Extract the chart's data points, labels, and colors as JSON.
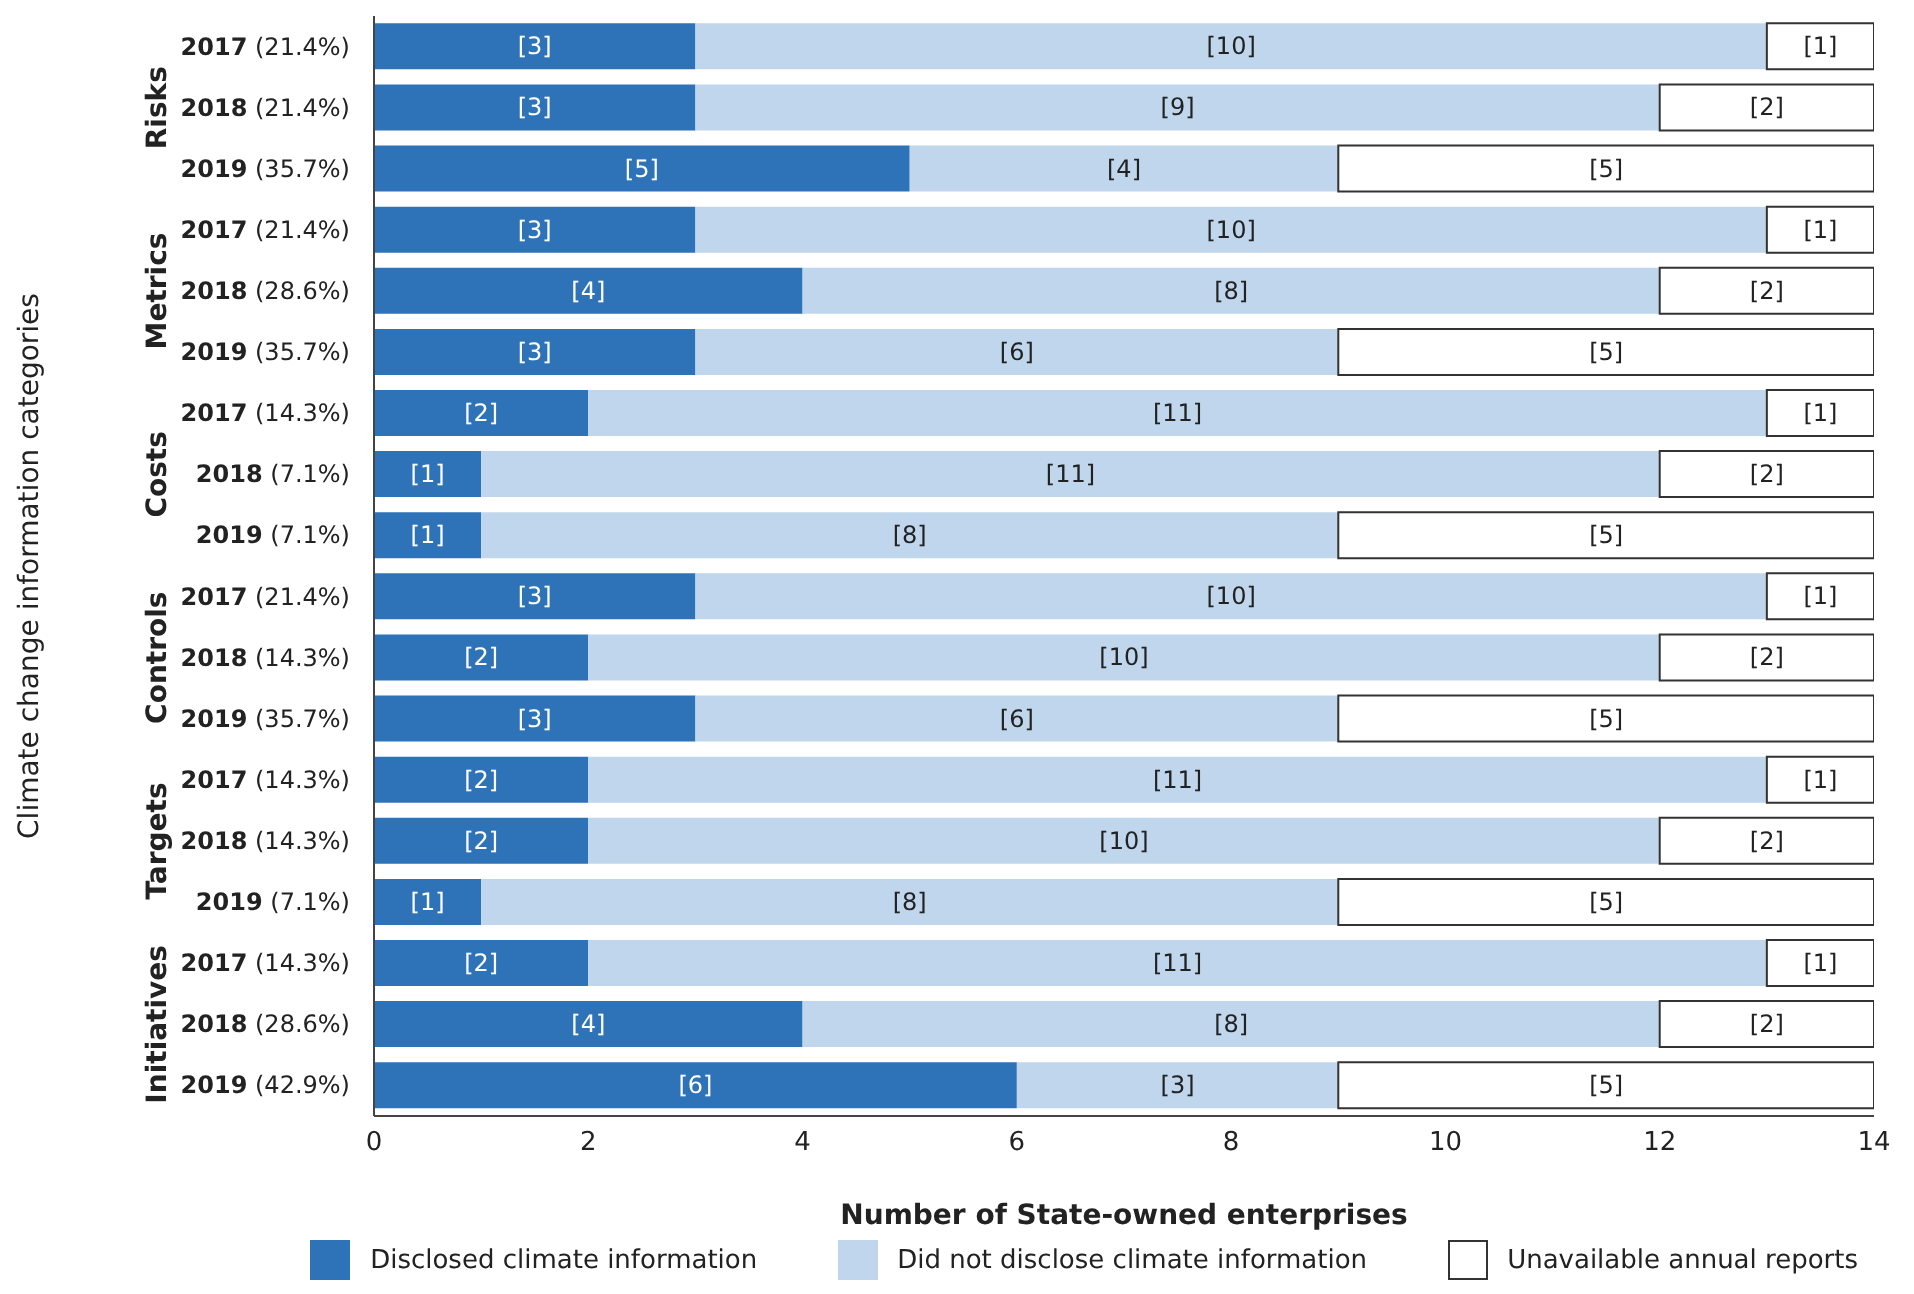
{
  "chart_data": {
    "type": "bar",
    "orientation": "horizontal",
    "stacked": true,
    "xlabel": "Number of State-owned enterprises",
    "ylabel": "Climate change information categories",
    "categories": [
      "2017 (21.4%)",
      "2018 (21.4%)",
      "2019 (35.7%)",
      "2017 (21.4%)",
      "2018 (28.6%)",
      "2019 (35.7%)",
      "2017 (14.3%)",
      "2018 (7.1%)",
      "2019 (7.1%)",
      "2017 (21.4%)",
      "2018 (14.3%)",
      "2019 (35.7%)",
      "2017 (14.3%)",
      "2018 (14.3%)",
      "2019 (7.1%)",
      "2017 (14.3%)",
      "2018 (28.6%)",
      "2019 (42.9%)"
    ],
    "annotations": [
      "Risks",
      "Metrics",
      "Costs",
      "Controls",
      "Targets",
      "Initiatives"
    ],
    "series": [
      {
        "name": "Disclosed climate information",
        "color": "#2e73b8",
        "values": [
          3,
          3,
          5,
          3,
          4,
          3,
          2,
          1,
          1,
          3,
          2,
          3,
          2,
          2,
          1,
          2,
          4,
          6
        ],
        "value_labels": [
          "[3]",
          "[3]",
          "[5]",
          "[3]",
          "[4]",
          "[3]",
          "[2]",
          "[1]",
          "[1]",
          "[3]",
          "[2]",
          "[3]",
          "[2]",
          "[2]",
          "[1]",
          "[2]",
          "[4]",
          "[6]"
        ]
      },
      {
        "name": "Did not disclose climate information",
        "color": "#bfd6ec",
        "values": [
          10,
          9,
          4,
          10,
          8,
          6,
          11,
          11,
          8,
          10,
          10,
          6,
          11,
          10,
          8,
          11,
          8,
          3
        ],
        "value_labels": [
          "[10]",
          "[9]",
          "[4]",
          "[10]",
          "[8]",
          "[6]",
          "[11]",
          "[11]",
          "[8]",
          "[10]",
          "[10]",
          "[6]",
          "[11]",
          "[10]",
          "[8]",
          "[11]",
          "[8]",
          "[3]"
        ]
      },
      {
        "name": "Unavailable annual reports",
        "color": "#ffffff",
        "values": [
          1,
          2,
          5,
          1,
          2,
          5,
          1,
          2,
          5,
          1,
          2,
          5,
          1,
          2,
          5,
          1,
          2,
          5
        ],
        "value_labels": [
          "[1]",
          "[2]",
          "[5]",
          "[1]",
          "[2]",
          "[5]",
          "[1]",
          "[2]",
          "[5]",
          "[1]",
          "[2]",
          "[5]",
          "[1]",
          "[2]",
          "[5]",
          "[1]",
          "[2]",
          "[5]"
        ]
      }
    ],
    "xlim": [
      0,
      14
    ],
    "xticks": [
      0,
      2,
      4,
      6,
      8,
      10,
      12,
      14
    ],
    "grid": false,
    "legend": "bottom"
  }
}
